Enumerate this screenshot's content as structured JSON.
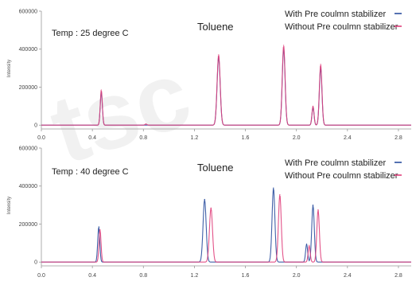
{
  "chart_data": [
    {
      "type": "line",
      "title": "Toluene",
      "annotation": "Temp : 25 degree C",
      "xlabel": "",
      "ylabel": "Intensity",
      "xlim": [
        0.0,
        2.9
      ],
      "ylim": [
        -20000,
        600000
      ],
      "xticks": [
        "0.0",
        "0.4",
        "0.8",
        "1.2",
        "1.6",
        "2.0",
        "2.4",
        "2.8"
      ],
      "yticks": [
        "0",
        "200000",
        "400000",
        "600000"
      ],
      "legend_position": "top-right",
      "series": [
        {
          "name": "With Pre coulmn stabilizer",
          "color": "#2b4f9e",
          "peaks": [
            {
              "x": 0.47,
              "y": 175000,
              "w": 0.008
            },
            {
              "x": 1.39,
              "y": 360000,
              "w": 0.012
            },
            {
              "x": 1.9,
              "y": 405000,
              "w": 0.011
            },
            {
              "x": 2.13,
              "y": 95000,
              "w": 0.008
            },
            {
              "x": 2.19,
              "y": 305000,
              "w": 0.01
            }
          ]
        },
        {
          "name": "Without Pre coulmn stabilizer",
          "color": "#e0407c",
          "peaks": [
            {
              "x": 0.47,
              "y": 185000,
              "w": 0.008
            },
            {
              "x": 0.82,
              "y": 6000,
              "w": 0.008
            },
            {
              "x": 1.39,
              "y": 370000,
              "w": 0.012
            },
            {
              "x": 1.9,
              "y": 420000,
              "w": 0.011
            },
            {
              "x": 2.13,
              "y": 100000,
              "w": 0.008
            },
            {
              "x": 2.19,
              "y": 320000,
              "w": 0.01
            }
          ]
        }
      ]
    },
    {
      "type": "line",
      "title": "Toluene",
      "annotation": "Temp : 40 degree C",
      "xlabel": "",
      "ylabel": "Intensity",
      "xlim": [
        0.0,
        2.9
      ],
      "ylim": [
        -20000,
        600000
      ],
      "xticks": [
        "0.0",
        "0.4",
        "0.8",
        "1.2",
        "1.6",
        "2.0",
        "2.4",
        "2.8"
      ],
      "yticks": [
        "0",
        "200000",
        "400000",
        "600000"
      ],
      "legend_position": "top-right",
      "series": [
        {
          "name": "With Pre coulmn stabilizer",
          "color": "#2b4f9e",
          "peaks": [
            {
              "x": 0.45,
              "y": 185000,
              "w": 0.008
            },
            {
              "x": 1.28,
              "y": 330000,
              "w": 0.012
            },
            {
              "x": 1.82,
              "y": 390000,
              "w": 0.011
            },
            {
              "x": 2.08,
              "y": 95000,
              "w": 0.008
            },
            {
              "x": 2.13,
              "y": 300000,
              "w": 0.01
            }
          ]
        },
        {
          "name": "Without Pre coulmn stabilizer",
          "color": "#e0407c",
          "peaks": [
            {
              "x": 0.46,
              "y": 170000,
              "w": 0.008
            },
            {
              "x": 1.33,
              "y": 285000,
              "w": 0.012
            },
            {
              "x": 1.87,
              "y": 355000,
              "w": 0.011
            },
            {
              "x": 2.1,
              "y": 85000,
              "w": 0.008
            },
            {
              "x": 2.17,
              "y": 275000,
              "w": 0.01
            }
          ]
        }
      ]
    }
  ],
  "watermark": "tsc"
}
